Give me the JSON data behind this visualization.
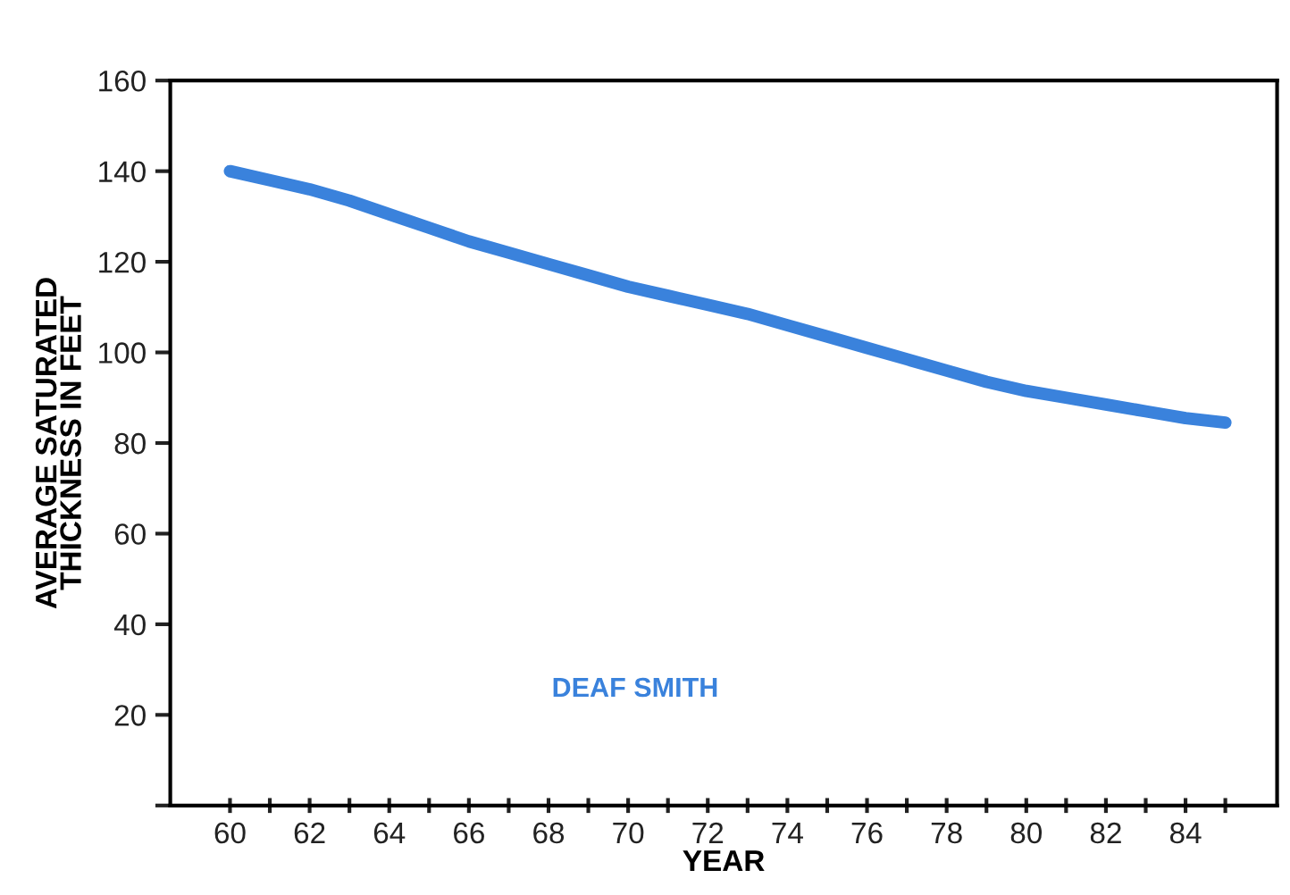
{
  "chart_data": {
    "type": "line",
    "xlabel": "YEAR",
    "ylabel": "AVERAGE SATURATED\nTHICKNESS IN FEET",
    "x": [
      60,
      61,
      62,
      63,
      64,
      65,
      66,
      67,
      68,
      69,
      70,
      71,
      72,
      73,
      74,
      75,
      76,
      77,
      78,
      79,
      80,
      81,
      82,
      83,
      84,
      85
    ],
    "series": [
      {
        "name": "DEAF SMITH",
        "color": "#3a82dc",
        "values": [
          140,
          138,
          136,
          133.5,
          130.5,
          127.5,
          124.5,
          122,
          119.5,
          117,
          114.5,
          112.5,
          110.5,
          108.5,
          106,
          103.5,
          101,
          98.5,
          96,
          93.5,
          91.5,
          90,
          88.5,
          87,
          85.5,
          84.5
        ]
      }
    ],
    "xlim": [
      58.5,
      86.3
    ],
    "ylim": [
      0,
      160
    ],
    "xticks": [
      60,
      {
        "value": 61,
        "label": null
      },
      62,
      {
        "value": 63,
        "label": null
      },
      64,
      {
        "value": 65,
        "label": null
      },
      66,
      {
        "value": 67,
        "label": null
      },
      68,
      {
        "value": 69,
        "label": null
      },
      70,
      {
        "value": 71,
        "label": null
      },
      72,
      {
        "value": 73,
        "label": null
      },
      74,
      {
        "value": 75,
        "label": null
      },
      76,
      {
        "value": 77,
        "label": null
      },
      78,
      {
        "value": 79,
        "label": null
      },
      80,
      {
        "value": 81,
        "label": null
      },
      82,
      {
        "value": 83,
        "label": null
      },
      84,
      {
        "value": 85,
        "label": null
      }
    ],
    "yticks": [
      {
        "value": 0,
        "label": null
      },
      20,
      40,
      60,
      80,
      100,
      120,
      140,
      160
    ],
    "grid": false,
    "legend": false,
    "marker": "none",
    "line_style": "solid"
  }
}
